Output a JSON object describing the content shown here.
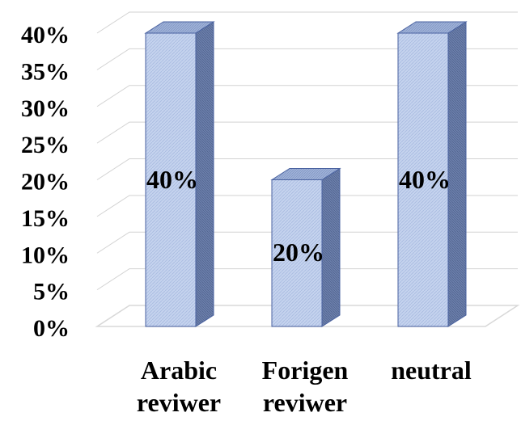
{
  "chart_data": {
    "type": "bar",
    "title": "",
    "xlabel": "",
    "ylabel": "",
    "categories": [
      [
        "Arabic",
        "reviwer"
      ],
      [
        "Forigen",
        "reviwer"
      ],
      [
        "neutral"
      ]
    ],
    "values": [
      40,
      20,
      40
    ],
    "data_labels": [
      "40%",
      "20%",
      "40%"
    ],
    "y_ticks": [
      "0%",
      "5%",
      "10%",
      "15%",
      "20%",
      "25%",
      "30%",
      "35%",
      "40%"
    ],
    "ylim": [
      0,
      40
    ],
    "grid": true,
    "legend": "none",
    "style": "3d",
    "colors": {
      "bar_front": "#c5d3ee",
      "bar_side": "#6c80ac",
      "bar_top": "#9fb2d8",
      "bar_outline": "#4a62a0",
      "grid": "#d2d2d2",
      "floor": "#d8d8d8"
    }
  }
}
